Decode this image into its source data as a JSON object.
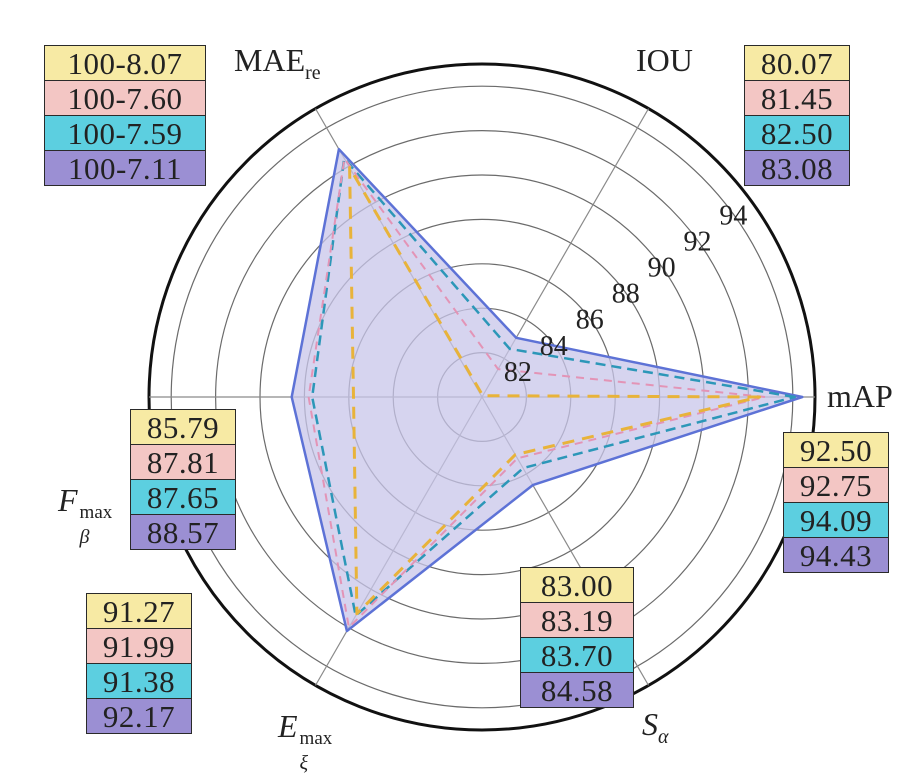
{
  "chart_data": {
    "type": "radar",
    "axes": [
      {
        "key": "mAP",
        "label": "mAP"
      },
      {
        "key": "IOU",
        "label": "IOU"
      },
      {
        "key": "MAE_re",
        "label_main": "MAE",
        "label_sub": "re"
      },
      {
        "key": "F_beta_max",
        "label_main": "F",
        "label_sub": "β",
        "label_sup": "max"
      },
      {
        "key": "E_xi_max",
        "label_main": "E",
        "label_sub": "ξ",
        "label_sup": "max"
      },
      {
        "key": "S_alpha",
        "label_main": "S",
        "label_sub": "α"
      }
    ],
    "radial_ticks": [
      "82",
      "84",
      "86",
      "88",
      "90",
      "92",
      "94"
    ],
    "radial_range": [
      80,
      95
    ],
    "series_colors": [
      "#f7eaa4",
      "#f3c6c4",
      "#5ccfe0",
      "#9b8fd3"
    ],
    "series_line_colors": [
      "#e8b33a",
      "#e394b6",
      "#2c97b8",
      "#5d72d6"
    ],
    "series_fill": "#c8c6ea",
    "series": [
      {
        "values": {
          "mAP": 92.5,
          "IOU": 80.07,
          "MAE_re": 91.93,
          "F_beta_max": 85.79,
          "E_xi_max": 91.27,
          "S_alpha": 83.0
        }
      },
      {
        "values": {
          "mAP": 92.75,
          "IOU": 81.45,
          "MAE_re": 92.4,
          "F_beta_max": 87.81,
          "E_xi_max": 91.99,
          "S_alpha": 83.19
        }
      },
      {
        "values": {
          "mAP": 94.09,
          "IOU": 82.5,
          "MAE_re": 92.41,
          "F_beta_max": 87.65,
          "E_xi_max": 91.38,
          "S_alpha": 83.7
        }
      },
      {
        "values": {
          "mAP": 94.43,
          "IOU": 83.08,
          "MAE_re": 92.89,
          "F_beta_max": 88.57,
          "E_xi_max": 92.17,
          "S_alpha": 84.58
        }
      }
    ],
    "value_boxes": {
      "MAE_re": [
        "100-8.07",
        "100-7.60",
        "100-7.59",
        "100-7.11"
      ],
      "IOU": [
        "80.07",
        "81.45",
        "82.50",
        "83.08"
      ],
      "mAP": [
        "92.50",
        "92.75",
        "94.09",
        "94.43"
      ],
      "F_beta_max": [
        "85.79",
        "87.81",
        "87.65",
        "88.57"
      ],
      "E_xi_max": [
        "91.27",
        "91.99",
        "91.38",
        "92.17"
      ],
      "S_alpha": [
        "83.00",
        "83.19",
        "83.70",
        "84.58"
      ]
    }
  }
}
